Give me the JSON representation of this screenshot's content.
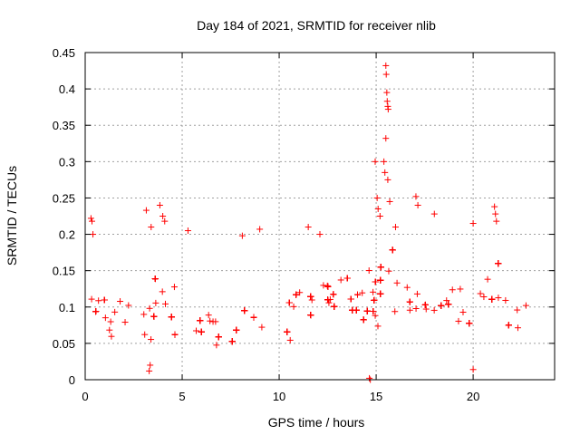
{
  "chart_data": {
    "type": "scatter",
    "title": "Day 184 of 2021, SRMTID for receiver nlib",
    "xlabel": "GPS time / hours",
    "ylabel": "SRMTID / TECUs",
    "xlim": [
      0,
      24.2
    ],
    "ylim": [
      0,
      0.45
    ],
    "xticks": [
      0,
      5,
      10,
      15,
      20
    ],
    "yticks": [
      0,
      0.05,
      0.1,
      0.15,
      0.2,
      0.25,
      0.3,
      0.35,
      0.4,
      0.45
    ],
    "xtick_labels": [
      "0",
      "5",
      "10",
      "15",
      "20"
    ],
    "ytick_labels": [
      "0",
      "0.05",
      "0.1",
      "0.15",
      "0.2",
      "0.25",
      "0.3",
      "0.35",
      "0.4",
      "0.45"
    ],
    "grid": true,
    "marker": "+",
    "color": "#ff0000",
    "series": [
      {
        "name": "SRMTID",
        "profile": {
          "x": [
            0.0,
            0.5,
            1.0,
            1.5,
            2.0,
            2.5,
            3.0,
            3.5,
            4.0,
            4.5,
            5.0,
            5.5,
            6.0,
            6.5,
            7.0,
            7.5,
            8.0,
            8.5,
            9.0,
            9.5,
            10.0,
            10.5,
            11.0,
            11.5,
            12.0,
            12.5,
            13.0,
            13.5,
            14.0,
            14.5,
            15.0,
            15.5,
            16.0,
            16.5,
            17.0,
            17.5,
            18.0,
            18.5,
            19.0,
            19.5,
            20.0,
            20.5,
            21.0,
            21.5,
            22.0,
            22.5,
            22.8
          ],
          "median": [
            0.09,
            0.09,
            0.085,
            0.075,
            0.07,
            0.08,
            0.1,
            0.1,
            0.12,
            0.1,
            0.085,
            0.08,
            0.075,
            0.065,
            0.05,
            0.055,
            0.07,
            0.09,
            0.09,
            0.085,
            0.075,
            0.08,
            0.09,
            0.095,
            0.1,
            0.1,
            0.105,
            0.1,
            0.1,
            0.1,
            0.11,
            0.125,
            0.115,
            0.1,
            0.11,
            0.105,
            0.1,
            0.095,
            0.1,
            0.09,
            0.08,
            0.095,
            0.1,
            0.09,
            0.085,
            0.09,
            0.1
          ],
          "spread": [
            0.05,
            0.05,
            0.045,
            0.04,
            0.04,
            0.045,
            0.06,
            0.06,
            0.07,
            0.06,
            0.05,
            0.05,
            0.045,
            0.04,
            0.03,
            0.035,
            0.045,
            0.06,
            0.06,
            0.055,
            0.05,
            0.05,
            0.055,
            0.06,
            0.06,
            0.06,
            0.06,
            0.06,
            0.055,
            0.055,
            0.065,
            0.07,
            0.065,
            0.06,
            0.065,
            0.06,
            0.06,
            0.055,
            0.06,
            0.055,
            0.05,
            0.06,
            0.07,
            0.06,
            0.055,
            0.05,
            0.05
          ]
        },
        "outliers": [
          {
            "x": 0.3,
            "y": 0.222
          },
          {
            "x": 0.35,
            "y": 0.218
          },
          {
            "x": 0.4,
            "y": 0.2
          },
          {
            "x": 3.15,
            "y": 0.233
          },
          {
            "x": 3.4,
            "y": 0.21
          },
          {
            "x": 3.85,
            "y": 0.24
          },
          {
            "x": 4.0,
            "y": 0.225
          },
          {
            "x": 4.1,
            "y": 0.218
          },
          {
            "x": 5.3,
            "y": 0.205
          },
          {
            "x": 8.1,
            "y": 0.198
          },
          {
            "x": 9.0,
            "y": 0.207
          },
          {
            "x": 11.5,
            "y": 0.21
          },
          {
            "x": 12.1,
            "y": 0.2
          },
          {
            "x": 14.95,
            "y": 0.3
          },
          {
            "x": 15.05,
            "y": 0.25
          },
          {
            "x": 15.1,
            "y": 0.235
          },
          {
            "x": 15.2,
            "y": 0.225
          },
          {
            "x": 15.4,
            "y": 0.3
          },
          {
            "x": 15.45,
            "y": 0.285
          },
          {
            "x": 15.5,
            "y": 0.432
          },
          {
            "x": 15.52,
            "y": 0.42
          },
          {
            "x": 15.55,
            "y": 0.395
          },
          {
            "x": 15.57,
            "y": 0.383
          },
          {
            "x": 15.6,
            "y": 0.376
          },
          {
            "x": 15.62,
            "y": 0.372
          },
          {
            "x": 15.5,
            "y": 0.332
          },
          {
            "x": 15.6,
            "y": 0.275
          },
          {
            "x": 15.7,
            "y": 0.245
          },
          {
            "x": 16.0,
            "y": 0.21
          },
          {
            "x": 17.05,
            "y": 0.252
          },
          {
            "x": 17.15,
            "y": 0.24
          },
          {
            "x": 18.0,
            "y": 0.228
          },
          {
            "x": 20.0,
            "y": 0.215
          },
          {
            "x": 21.1,
            "y": 0.238
          },
          {
            "x": 21.15,
            "y": 0.228
          },
          {
            "x": 21.2,
            "y": 0.218
          },
          {
            "x": 20.0,
            "y": 0.014
          },
          {
            "x": 3.3,
            "y": 0.012
          },
          {
            "x": 3.35,
            "y": 0.02
          },
          {
            "x": 14.65,
            "y": 0.002
          },
          {
            "x": 14.7,
            "y": 0.0
          }
        ]
      }
    ]
  }
}
